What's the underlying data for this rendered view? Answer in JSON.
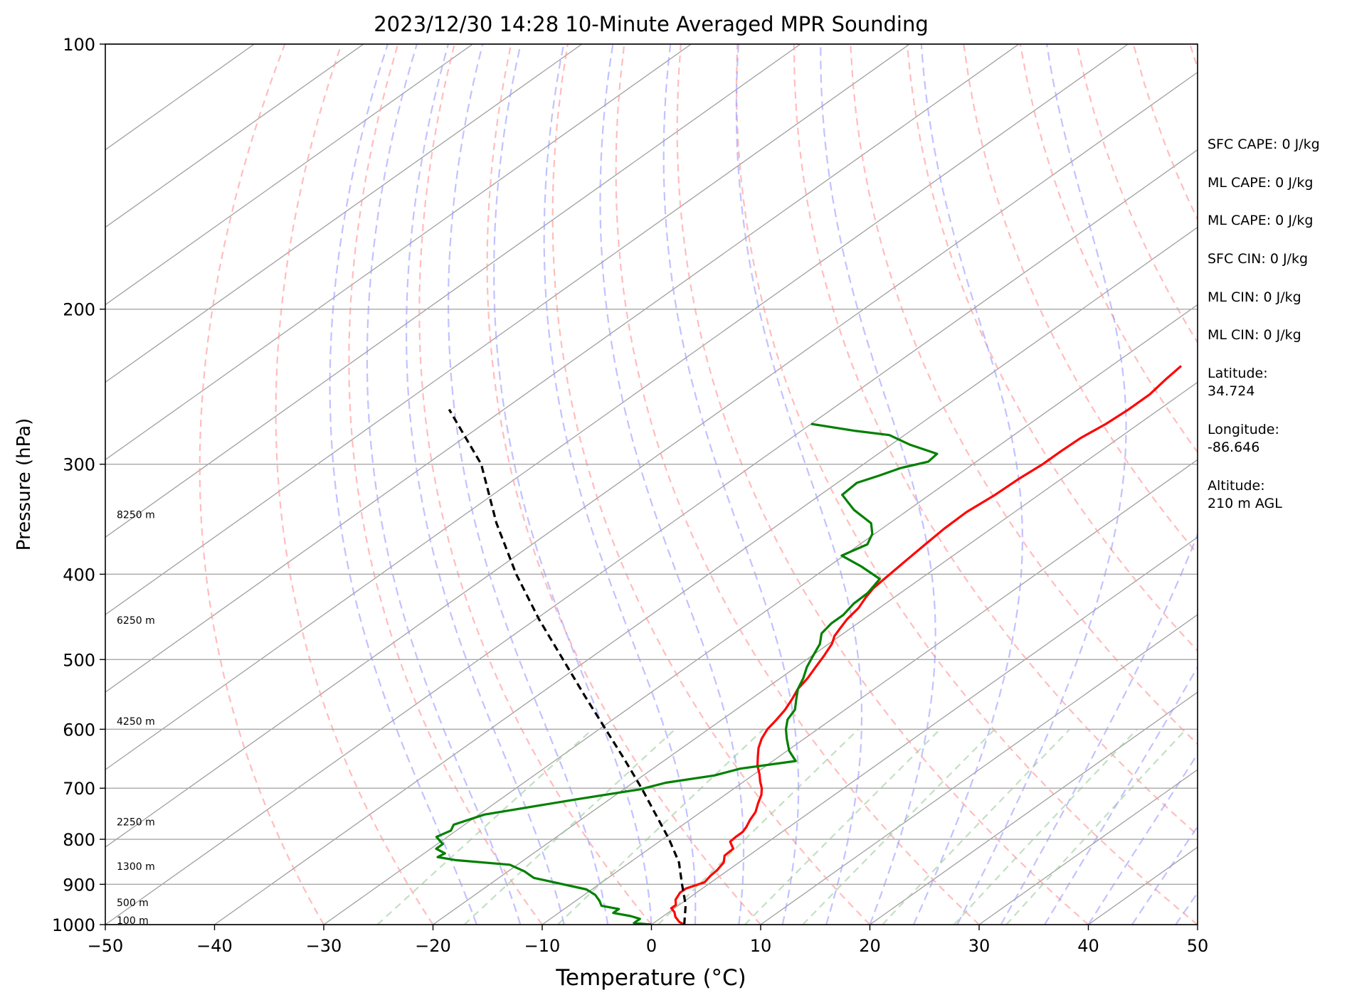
{
  "chart_data": {
    "type": "line",
    "subtype": "skew-T log-P sounding",
    "title": "2023/12/30 14:28 10-Minute Averaged MPR Sounding",
    "xlabel": "Temperature (°C)",
    "ylabel": "Pressure (hPa)",
    "xlim": [
      -50,
      50
    ],
    "ylim": [
      1000,
      100
    ],
    "y_scale": "log",
    "x_ticks": [
      -50,
      -40,
      -30,
      -20,
      -10,
      0,
      10,
      20,
      30,
      40,
      50
    ],
    "x_tick_labels": [
      "−50",
      "−40",
      "−30",
      "−20",
      "−10",
      "0",
      "10",
      "20",
      "30",
      "40",
      "50"
    ],
    "y_ticks": [
      100,
      200,
      300,
      400,
      500,
      600,
      700,
      800,
      900,
      1000
    ],
    "y_tick_labels": [
      "100",
      "200",
      "300",
      "400",
      "500",
      "600",
      "700",
      "800",
      "900",
      "1000"
    ],
    "grid": true,
    "height_labels": [
      {
        "text": "100 m",
        "pressure": 1000
      },
      {
        "text": "500 m",
        "pressure": 955
      },
      {
        "text": "1300 m",
        "pressure": 868
      },
      {
        "text": "2250 m",
        "pressure": 773
      },
      {
        "text": "4250 m",
        "pressure": 594
      },
      {
        "text": "6250 m",
        "pressure": 456
      },
      {
        "text": "8250 m",
        "pressure": 346
      }
    ],
    "series": [
      {
        "color": "#ff0000",
        "points": [
          [
            3.0,
            1000
          ],
          [
            2.2,
            993
          ],
          [
            1.2,
            980
          ],
          [
            0.5,
            968
          ],
          [
            -0.3,
            958
          ],
          [
            -0.3,
            950
          ],
          [
            -1.0,
            937
          ],
          [
            -1.5,
            920
          ],
          [
            -1.5,
            910
          ],
          [
            -0.6,
            895
          ],
          [
            -0.9,
            880
          ],
          [
            -1.0,
            868
          ],
          [
            -1.4,
            850
          ],
          [
            -2.2,
            835
          ],
          [
            -2.3,
            820
          ],
          [
            -3.5,
            805
          ],
          [
            -3.6,
            795
          ],
          [
            -3.6,
            785
          ],
          [
            -3.9,
            775
          ],
          [
            -4.5,
            760
          ],
          [
            -5.0,
            745
          ],
          [
            -5.9,
            728
          ],
          [
            -6.7,
            712
          ],
          [
            -7.5,
            700
          ],
          [
            -8.5,
            688
          ],
          [
            -9.5,
            675
          ],
          [
            -10.8,
            660
          ],
          [
            -11.9,
            645
          ],
          [
            -13.0,
            630
          ],
          [
            -13.9,
            615
          ],
          [
            -14.6,
            600
          ],
          [
            -15.0,
            585
          ],
          [
            -15.5,
            570
          ],
          [
            -16.2,
            555
          ],
          [
            -17.0,
            540
          ],
          [
            -17.5,
            525
          ],
          [
            -18.2,
            510
          ],
          [
            -18.9,
            495
          ],
          [
            -19.7,
            480
          ],
          [
            -20.5,
            470
          ],
          [
            -21.0,
            460
          ],
          [
            -21.5,
            450
          ],
          [
            -21.9,
            437
          ],
          [
            -22.6,
            425
          ],
          [
            -23.1,
            415
          ],
          [
            -23.4,
            400
          ],
          [
            -23.7,
            385
          ],
          [
            -24.0,
            370
          ],
          [
            -24.3,
            355
          ],
          [
            -24.4,
            340
          ],
          [
            -24.0,
            325
          ],
          [
            -23.9,
            312
          ],
          [
            -23.6,
            300
          ],
          [
            -23.6,
            290
          ],
          [
            -23.5,
            280
          ],
          [
            -23.0,
            270
          ],
          [
            -22.8,
            260
          ],
          [
            -22.8,
            250
          ],
          [
            -23.3,
            240
          ],
          [
            -23.6,
            232
          ]
        ]
      },
      {
        "color": "#008000",
        "points": [
          [
            0.0,
            1000
          ],
          [
            -1.8,
            996
          ],
          [
            -1.8,
            985
          ],
          [
            -3.0,
            978
          ],
          [
            -5.0,
            970
          ],
          [
            -5.0,
            960
          ],
          [
            -7.0,
            952
          ],
          [
            -7.8,
            940
          ],
          [
            -9.0,
            925
          ],
          [
            -10.5,
            912
          ],
          [
            -16.8,
            885
          ],
          [
            -18.5,
            870
          ],
          [
            -20.7,
            855
          ],
          [
            -26.2,
            845
          ],
          [
            -28.3,
            838
          ],
          [
            -28.1,
            830
          ],
          [
            -29.5,
            820
          ],
          [
            -29.5,
            810
          ],
          [
            -31.0,
            795
          ],
          [
            -30.5,
            782
          ],
          [
            -31.0,
            770
          ],
          [
            -29.5,
            750
          ],
          [
            -22.9,
            720
          ],
          [
            -18.5,
            702
          ],
          [
            -17.0,
            690
          ],
          [
            -13.5,
            677
          ],
          [
            -12.0,
            665
          ],
          [
            -7.9,
            652
          ],
          [
            -7.9,
            652
          ],
          [
            -9.8,
            635
          ],
          [
            -11.6,
            615
          ],
          [
            -12.9,
            600
          ],
          [
            -14.0,
            585
          ],
          [
            -14.6,
            570
          ],
          [
            -15.8,
            555
          ],
          [
            -17.0,
            540
          ],
          [
            -17.9,
            525
          ],
          [
            -19.0,
            510
          ],
          [
            -19.9,
            495
          ],
          [
            -20.8,
            480
          ],
          [
            -22.0,
            467
          ],
          [
            -22.4,
            455
          ],
          [
            -22.4,
            445
          ],
          [
            -22.9,
            432
          ],
          [
            -23.0,
            420
          ],
          [
            -23.7,
            405
          ],
          [
            -27.0,
            392
          ],
          [
            -30.2,
            381
          ],
          [
            -29.3,
            370
          ],
          [
            -30.2,
            360
          ],
          [
            -31.7,
            350
          ],
          [
            -35.0,
            338
          ],
          [
            -38.0,
            325
          ],
          [
            -38.2,
            315
          ],
          [
            -37.1,
            309
          ],
          [
            -36.1,
            303
          ],
          [
            -34.4,
            298
          ],
          [
            -34.6,
            292
          ],
          [
            -38.3,
            285
          ],
          [
            -41.4,
            278
          ],
          [
            -45.0,
            275
          ],
          [
            -50.0,
            270
          ]
        ]
      },
      {
        "color": "#000000",
        "dashed": true,
        "points": [
          [
            3.0,
            1000
          ],
          [
            0.6,
            950
          ],
          [
            -2.4,
            900
          ],
          [
            -5.5,
            850
          ],
          [
            -9.4,
            800
          ],
          [
            -13.8,
            750
          ],
          [
            -18.5,
            700
          ],
          [
            -23.7,
            650
          ],
          [
            -29.4,
            600
          ],
          [
            -35.6,
            550
          ],
          [
            -42.3,
            500
          ],
          [
            -49.7,
            450
          ],
          [
            -57.6,
            400
          ],
          [
            -66.0,
            350
          ],
          [
            -75.0,
            300
          ],
          [
            -85.0,
            260
          ]
        ]
      }
    ]
  },
  "info_panel": {
    "items": [
      "SFC CAPE: 0 J/kg",
      "ML CAPE: 0 J/kg",
      "ML CAPE: 0 J/kg",
      "SFC CIN: 0 J/kg",
      "ML CIN: 0 J/kg",
      "ML CIN: 0 J/kg",
      "Latitude:\n34.724",
      "Longitude:\n-86.646",
      "Altitude:\n210 m AGL"
    ]
  },
  "colors": {
    "temperature": "#ff0000",
    "dewpoint": "#008000",
    "parcel": "#000000",
    "isotherm": "#a0a0a0",
    "dry_adiabat": "#ff9999",
    "moist_adiabat": "#9999ff",
    "mixing_ratio": "#99cc99"
  }
}
